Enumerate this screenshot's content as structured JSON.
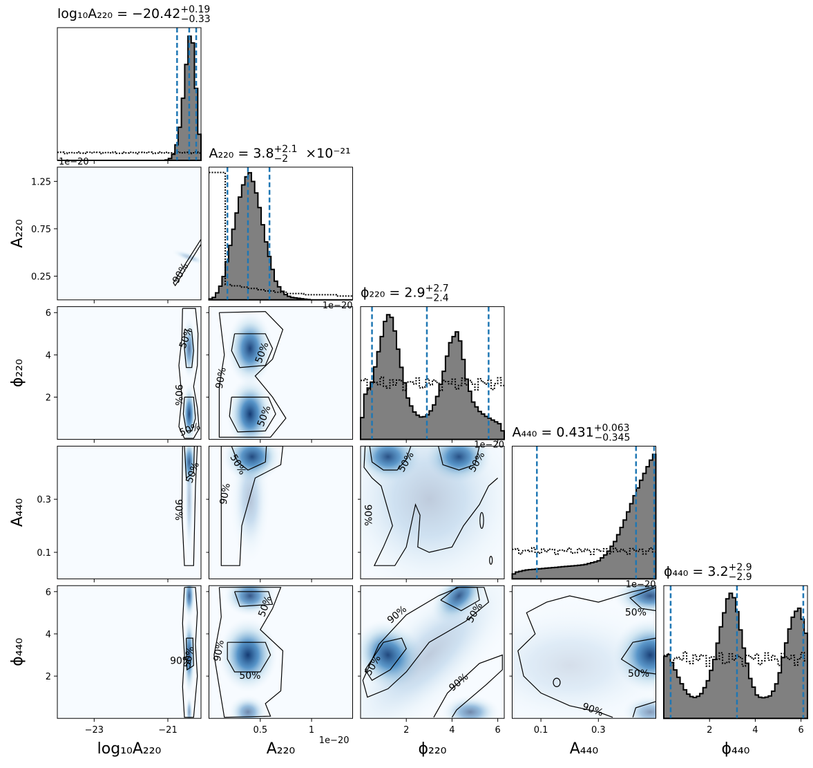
{
  "chart_data": {
    "type": "corner",
    "parameters": [
      {
        "key": "logA220",
        "label": "log₁₀A₂₂₀",
        "range": [
          -24.0,
          -20.1
        ],
        "ticks": [
          -23,
          -21
        ],
        "title": "log₁₀A₂₂₀ = −20.42",
        "title_sup": "+0.19",
        "title_sub": "−0.33",
        "quantiles": [
          -20.75,
          -20.42,
          -20.23
        ],
        "offset_label": "1e−20"
      },
      {
        "key": "A220",
        "label": "A₂₂₀",
        "range": [
          0.0,
          1.4
        ],
        "ticks": [
          0.5,
          1.0
        ],
        "yticks": [
          0.25,
          0.75,
          1.25
        ],
        "title": "A₂₂₀ = 3.8",
        "title_sup": "+2.1",
        "title_sub": "−2",
        "title_suffix": "×10⁻²¹",
        "quantiles": [
          0.18,
          0.38,
          0.59
        ],
        "offset_label": "1e−20"
      },
      {
        "key": "phi220",
        "label": "ϕ₂₂₀",
        "range": [
          0.0,
          6.283
        ],
        "ticks": [
          2,
          4,
          6
        ],
        "title": "ϕ₂₂₀ = 2.9",
        "title_sup": "+2.7",
        "title_sub": "−2.4",
        "quantiles": [
          0.5,
          2.9,
          5.6
        ],
        "offset_label": "1e−20"
      },
      {
        "key": "A440",
        "label": "A₄₄₀",
        "range": [
          0.0,
          0.5
        ],
        "ticks": [
          0.1,
          0.3
        ],
        "title": "A₄₄₀ = 0.431",
        "title_sup": "+0.063",
        "title_sub": "−0.345",
        "quantiles": [
          0.086,
          0.431,
          0.494
        ],
        "offset_label": "1e−20"
      },
      {
        "key": "phi440",
        "label": "ϕ₄₄₀",
        "range": [
          0.0,
          6.283
        ],
        "ticks": [
          2,
          4,
          6
        ],
        "title": "ϕ₄₄₀ = 3.2",
        "title_sup": "+2.9",
        "title_sub": "−2.9",
        "quantiles": [
          0.3,
          3.2,
          6.1
        ]
      }
    ],
    "contour_levels": [
      "50%",
      "90%"
    ],
    "posterior_color": "#808080",
    "quantile_color": "#1f77b4",
    "density_colormap": "Blues",
    "x_offset_note": "1e−20",
    "marginals": {
      "logA220": {
        "post_centers": [
          -20.9,
          -20.8,
          -20.7,
          -20.6,
          -20.5,
          -20.4,
          -20.3,
          -20.2,
          -20.1
        ],
        "post": [
          0.02,
          0.08,
          0.2,
          0.45,
          0.75,
          1.0,
          0.9,
          0.4,
          0.05
        ],
        "prior_level": 0.06
      },
      "A220": {
        "post_centers": [
          0.05,
          0.1,
          0.15,
          0.2,
          0.25,
          0.3,
          0.35,
          0.4,
          0.45,
          0.5,
          0.55,
          0.6,
          0.65,
          0.7,
          0.75,
          0.8,
          0.9,
          1.0
        ],
        "post": [
          0.02,
          0.08,
          0.2,
          0.4,
          0.6,
          0.8,
          0.95,
          1.0,
          0.88,
          0.7,
          0.48,
          0.3,
          0.15,
          0.08,
          0.04,
          0.02,
          0.01,
          0.0
        ],
        "prior": [
          1.0,
          1.0,
          0.12,
          0.11,
          0.1,
          0.09,
          0.08,
          0.07,
          0.06,
          0.06,
          0.05,
          0.05,
          0.04,
          0.04,
          0.04,
          0.04,
          0.03,
          0.03
        ]
      },
      "phi220": {
        "post_centers": [
          0.2,
          0.5,
          0.8,
          1.1,
          1.3,
          1.5,
          1.8,
          2.1,
          2.4,
          2.7,
          3.0,
          3.3,
          3.6,
          3.9,
          4.2,
          4.4,
          4.6,
          4.9,
          5.2,
          5.5,
          5.8,
          6.1
        ],
        "post": [
          0.35,
          0.45,
          0.7,
          0.95,
          1.0,
          0.85,
          0.55,
          0.3,
          0.2,
          0.17,
          0.2,
          0.3,
          0.5,
          0.75,
          0.85,
          0.75,
          0.5,
          0.3,
          0.22,
          0.18,
          0.15,
          0.12
        ],
        "prior_level": 0.44
      },
      "A440": {
        "post_centers": [
          0.01,
          0.05,
          0.1,
          0.15,
          0.2,
          0.25,
          0.3,
          0.33,
          0.36,
          0.39,
          0.42,
          0.45,
          0.48,
          0.5
        ],
        "post": [
          0.05,
          0.07,
          0.08,
          0.09,
          0.1,
          0.11,
          0.14,
          0.2,
          0.3,
          0.45,
          0.62,
          0.78,
          0.92,
          1.0
        ],
        "prior_level": 0.22
      },
      "phi440": {
        "post_centers": [
          0.1,
          0.4,
          0.7,
          1.0,
          1.3,
          1.6,
          1.9,
          2.2,
          2.5,
          2.8,
          3.0,
          3.2,
          3.5,
          3.8,
          4.1,
          4.4,
          4.7,
          5.0,
          5.3,
          5.6,
          5.9,
          6.2
        ],
        "post": [
          0.55,
          0.42,
          0.3,
          0.2,
          0.16,
          0.18,
          0.28,
          0.45,
          0.72,
          0.95,
          1.0,
          0.85,
          0.55,
          0.3,
          0.17,
          0.16,
          0.18,
          0.3,
          0.55,
          0.78,
          0.88,
          0.7
        ],
        "prior_level": 0.47
      }
    }
  }
}
